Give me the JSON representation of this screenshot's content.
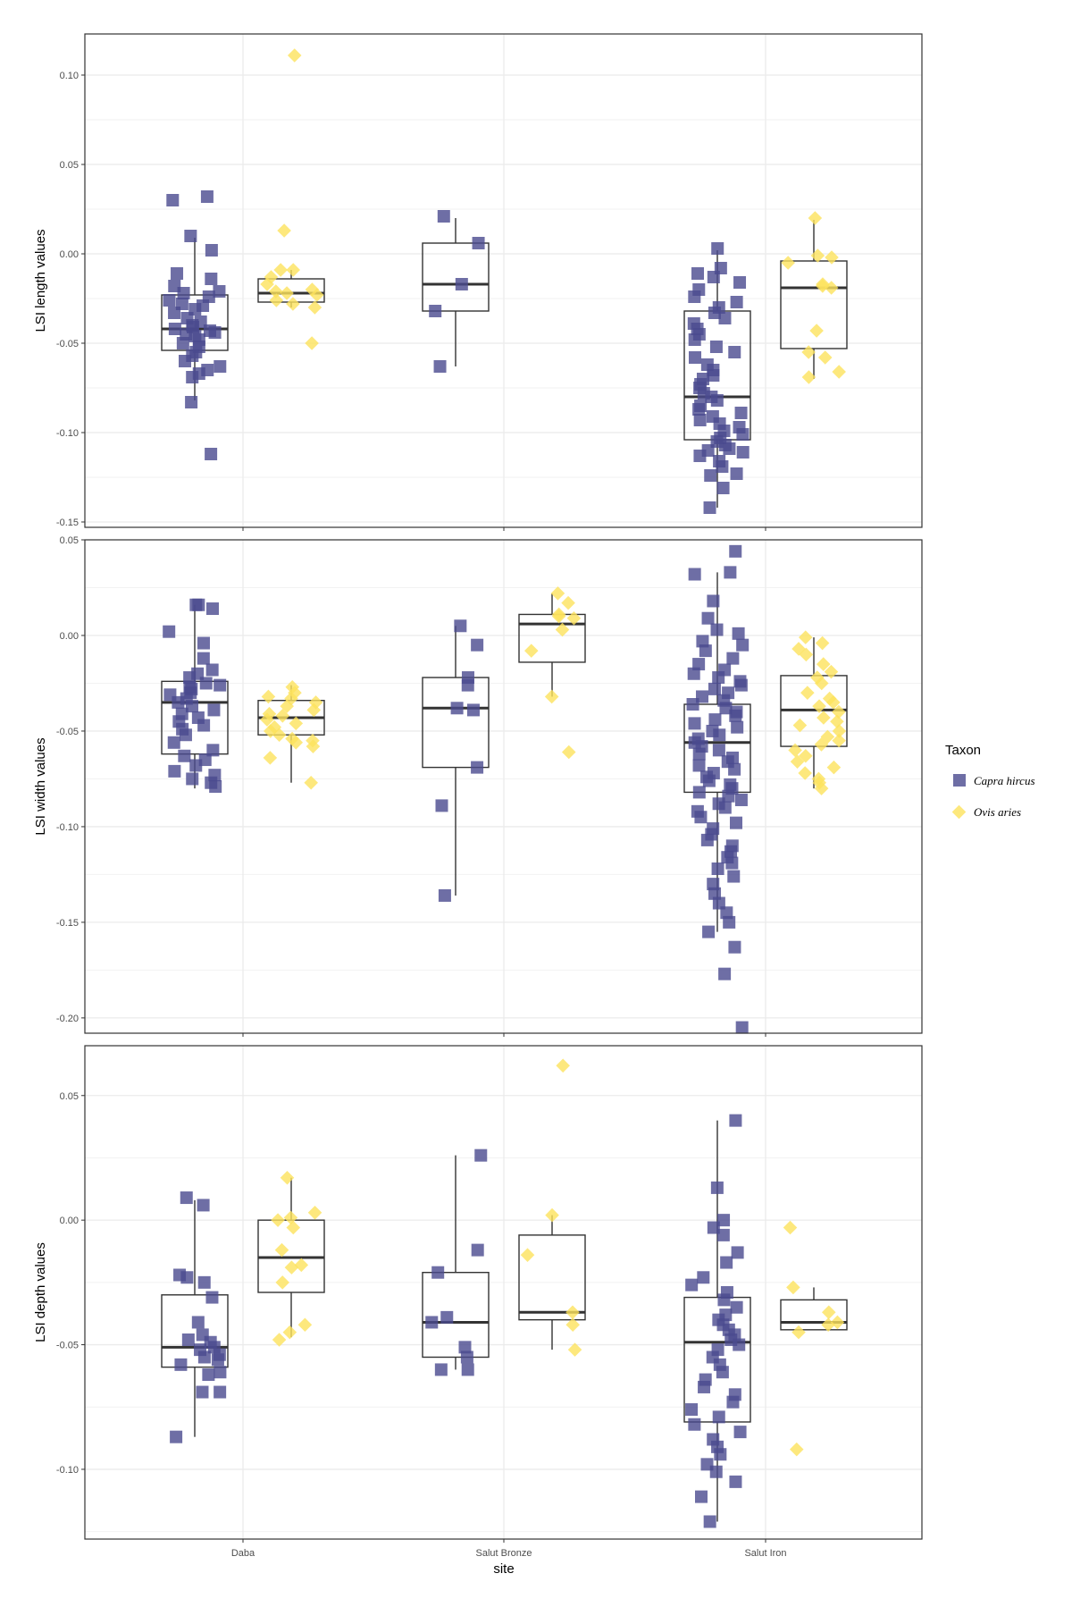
{
  "chart_data": {
    "type": "scatter",
    "x_title": "site",
    "categories": [
      "Daba",
      "Salut Bronze",
      "Salut Iron"
    ],
    "legend": {
      "title": "Taxon",
      "position": "right",
      "entries": [
        {
          "name": "Capra hircus",
          "color": "#4a4a8f",
          "shape": "square"
        },
        {
          "name": "Ovis aries",
          "color": "#fde25c",
          "shape": "diamond"
        }
      ]
    },
    "panels": [
      {
        "ylabel": "LSI length values",
        "ylim": [
          -0.153,
          0.123
        ],
        "yticks": [
          -0.15,
          -0.1,
          -0.05,
          0.0,
          0.05,
          0.1
        ],
        "tick_labels": [
          "-0.15",
          "-0.10",
          "-0.05",
          "0.00",
          "0.05",
          "0.10"
        ],
        "boxes": [
          {
            "site": "Daba",
            "taxon": "Capra hircus",
            "min": -0.082,
            "q1": -0.054,
            "median": -0.042,
            "q3": -0.023,
            "max": 0.009
          },
          {
            "site": "Daba",
            "taxon": "Ovis aries",
            "min": -0.03,
            "q1": -0.027,
            "median": -0.022,
            "q3": -0.014,
            "max": -0.009
          },
          {
            "site": "Salut Bronze",
            "taxon": "Capra hircus",
            "min": -0.063,
            "q1": -0.032,
            "median": -0.017,
            "q3": 0.006,
            "max": 0.02
          },
          {
            "site": "Salut Iron",
            "taxon": "Capra hircus",
            "min": -0.142,
            "q1": -0.104,
            "median": -0.08,
            "q3": -0.032,
            "max": 0.002
          },
          {
            "site": "Salut Iron",
            "taxon": "Ovis aries",
            "min": -0.07,
            "q1": -0.053,
            "median": -0.019,
            "q3": -0.004,
            "max": 0.019
          }
        ],
        "points": {
          "Daba": {
            "Capra hircus": [
              0.032,
              0.03,
              0.01,
              0.002,
              -0.011,
              -0.014,
              -0.018,
              -0.021,
              -0.022,
              -0.024,
              -0.026,
              -0.028,
              -0.029,
              -0.031,
              -0.033,
              -0.036,
              -0.038,
              -0.04,
              -0.041,
              -0.042,
              -0.043,
              -0.044,
              -0.045,
              -0.046,
              -0.048,
              -0.05,
              -0.052,
              -0.055,
              -0.057,
              -0.06,
              -0.063,
              -0.065,
              -0.067,
              -0.069,
              -0.083,
              -0.112
            ],
            "Ovis aries": [
              0.111,
              0.013,
              -0.009,
              -0.009,
              -0.013,
              -0.017,
              -0.02,
              -0.021,
              -0.022,
              -0.023,
              -0.026,
              -0.028,
              -0.03,
              -0.05
            ]
          },
          "Salut Bronze": {
            "Capra hircus": [
              0.021,
              0.006,
              -0.017,
              -0.032,
              -0.063
            ]
          },
          "Salut Iron": {
            "Capra hircus": [
              0.003,
              -0.008,
              -0.011,
              -0.013,
              -0.016,
              -0.02,
              -0.024,
              -0.027,
              -0.03,
              -0.033,
              -0.036,
              -0.039,
              -0.042,
              -0.045,
              -0.048,
              -0.052,
              -0.055,
              -0.058,
              -0.062,
              -0.065,
              -0.068,
              -0.07,
              -0.073,
              -0.075,
              -0.078,
              -0.08,
              -0.082,
              -0.085,
              -0.087,
              -0.089,
              -0.091,
              -0.093,
              -0.095,
              -0.097,
              -0.099,
              -0.101,
              -0.103,
              -0.105,
              -0.107,
              -0.109,
              -0.11,
              -0.111,
              -0.113,
              -0.116,
              -0.119,
              -0.123,
              -0.124,
              -0.131,
              -0.142
            ],
            "Ovis aries": [
              0.02,
              -0.001,
              -0.002,
              -0.005,
              -0.017,
              -0.018,
              -0.019,
              -0.043,
              -0.055,
              -0.058,
              -0.066,
              -0.069
            ]
          }
        }
      },
      {
        "ylabel": "LSI width values",
        "ylim": [
          -0.208,
          0.05
        ],
        "yticks": [
          -0.2,
          -0.15,
          -0.1,
          -0.05,
          0.0,
          0.05
        ],
        "tick_labels": [
          "-0.20",
          "-0.15",
          "-0.10",
          "-0.05",
          "0.00",
          "0.05"
        ],
        "boxes": [
          {
            "site": "Daba",
            "taxon": "Capra hircus",
            "min": -0.08,
            "q1": -0.062,
            "median": -0.035,
            "q3": -0.024,
            "max": 0.016
          },
          {
            "site": "Daba",
            "taxon": "Ovis aries",
            "min": -0.077,
            "q1": -0.052,
            "median": -0.043,
            "q3": -0.034,
            "max": -0.026
          },
          {
            "site": "Salut Bronze",
            "taxon": "Capra hircus",
            "min": -0.136,
            "q1": -0.069,
            "median": -0.038,
            "q3": -0.022,
            "max": 0.005
          },
          {
            "site": "Salut Bronze",
            "taxon": "Ovis aries",
            "min": -0.032,
            "q1": -0.014,
            "median": 0.006,
            "q3": 0.011,
            "max": 0.022
          },
          {
            "site": "Salut Iron",
            "taxon": "Capra hircus",
            "min": -0.155,
            "q1": -0.082,
            "median": -0.056,
            "q3": -0.036,
            "max": 0.033
          },
          {
            "site": "Salut Iron",
            "taxon": "Ovis aries",
            "min": -0.08,
            "q1": -0.058,
            "median": -0.039,
            "q3": -0.021,
            "max": -0.001
          }
        ],
        "points": {
          "Daba": {
            "Capra hircus": [
              0.016,
              0.016,
              0.014,
              0.002,
              -0.004,
              -0.012,
              -0.018,
              -0.02,
              -0.022,
              -0.025,
              -0.026,
              -0.027,
              -0.028,
              -0.03,
              -0.031,
              -0.033,
              -0.035,
              -0.037,
              -0.039,
              -0.041,
              -0.043,
              -0.045,
              -0.047,
              -0.049,
              -0.052,
              -0.056,
              -0.06,
              -0.063,
              -0.065,
              -0.068,
              -0.071,
              -0.073,
              -0.075,
              -0.077,
              -0.079
            ],
            "Ovis aries": [
              -0.027,
              -0.03,
              -0.032,
              -0.033,
              -0.035,
              -0.037,
              -0.039,
              -0.041,
              -0.042,
              -0.044,
              -0.046,
              -0.048,
              -0.05,
              -0.052,
              -0.054,
              -0.055,
              -0.056,
              -0.058,
              -0.064,
              -0.077
            ]
          },
          "Salut Bronze": {
            "Capra hircus": [
              0.005,
              -0.005,
              -0.022,
              -0.026,
              -0.038,
              -0.039,
              -0.069,
              -0.089,
              -0.136
            ],
            "Ovis aries": [
              0.022,
              0.017,
              0.011,
              0.01,
              0.009,
              0.003,
              -0.008,
              -0.032,
              -0.061
            ]
          },
          "Salut Iron": {
            "Capra hircus": [
              0.044,
              0.033,
              0.032,
              0.018,
              0.009,
              0.003,
              0.001,
              -0.003,
              -0.005,
              -0.008,
              -0.012,
              -0.015,
              -0.018,
              -0.02,
              -0.022,
              -0.024,
              -0.026,
              -0.028,
              -0.03,
              -0.032,
              -0.034,
              -0.036,
              -0.038,
              -0.04,
              -0.042,
              -0.044,
              -0.046,
              -0.048,
              -0.05,
              -0.052,
              -0.054,
              -0.056,
              -0.058,
              -0.06,
              -0.062,
              -0.064,
              -0.066,
              -0.068,
              -0.07,
              -0.072,
              -0.074,
              -0.076,
              -0.078,
              -0.08,
              -0.082,
              -0.084,
              -0.086,
              -0.088,
              -0.09,
              -0.092,
              -0.095,
              -0.098,
              -0.101,
              -0.104,
              -0.107,
              -0.11,
              -0.113,
              -0.116,
              -0.119,
              -0.122,
              -0.126,
              -0.13,
              -0.135,
              -0.14,
              -0.145,
              -0.15,
              -0.155,
              -0.163,
              -0.177,
              -0.205
            ],
            "Ovis aries": [
              -0.001,
              -0.004,
              -0.007,
              -0.01,
              -0.015,
              -0.019,
              -0.022,
              -0.025,
              -0.03,
              -0.033,
              -0.035,
              -0.037,
              -0.04,
              -0.043,
              -0.045,
              -0.047,
              -0.05,
              -0.053,
              -0.055,
              -0.057,
              -0.06,
              -0.063,
              -0.066,
              -0.069,
              -0.072,
              -0.075,
              -0.077,
              -0.08
            ]
          }
        }
      },
      {
        "ylabel": "LSI depth values",
        "ylim": [
          -0.128,
          0.07
        ],
        "yticks": [
          -0.1,
          -0.05,
          0.0,
          0.05
        ],
        "tick_labels": [
          "-0.10",
          "-0.05",
          "0.00",
          "0.05"
        ],
        "boxes": [
          {
            "site": "Daba",
            "taxon": "Capra hircus",
            "min": -0.087,
            "q1": -0.059,
            "median": -0.051,
            "q3": -0.03,
            "max": 0.008
          },
          {
            "site": "Daba",
            "taxon": "Ovis aries",
            "min": -0.047,
            "q1": -0.029,
            "median": -0.015,
            "q3": 0.0,
            "max": 0.017
          },
          {
            "site": "Salut Bronze",
            "taxon": "Capra hircus",
            "min": -0.06,
            "q1": -0.055,
            "median": -0.041,
            "q3": -0.021,
            "max": 0.026
          },
          {
            "site": "Salut Bronze",
            "taxon": "Ovis aries",
            "min": -0.052,
            "q1": -0.04,
            "median": -0.037,
            "q3": -0.006,
            "max": 0.002
          },
          {
            "site": "Salut Iron",
            "taxon": "Capra hircus",
            "min": -0.121,
            "q1": -0.081,
            "median": -0.049,
            "q3": -0.031,
            "max": 0.04
          },
          {
            "site": "Salut Iron",
            "taxon": "Ovis aries",
            "min": -0.044,
            "q1": -0.044,
            "median": -0.041,
            "q3": -0.032,
            "max": -0.027
          }
        ],
        "points": {
          "Daba": {
            "Capra hircus": [
              0.009,
              0.006,
              -0.022,
              -0.023,
              -0.025,
              -0.031,
              -0.041,
              -0.046,
              -0.048,
              -0.049,
              -0.051,
              -0.052,
              -0.054,
              -0.055,
              -0.056,
              -0.058,
              -0.061,
              -0.062,
              -0.069,
              -0.069,
              -0.087
            ],
            "Ovis aries": [
              0.017,
              0.003,
              0.001,
              0.0,
              -0.003,
              -0.012,
              -0.018,
              -0.019,
              -0.025,
              -0.042,
              -0.045,
              -0.048
            ]
          },
          "Salut Bronze": {
            "Capra hircus": [
              0.026,
              -0.012,
              -0.021,
              -0.039,
              -0.041,
              -0.051,
              -0.055,
              -0.06,
              -0.06
            ],
            "Ovis aries": [
              0.062,
              0.002,
              -0.014,
              -0.037,
              -0.042,
              -0.052
            ]
          },
          "Salut Iron": {
            "Capra hircus": [
              0.04,
              0.013,
              0.0,
              -0.003,
              -0.006,
              -0.013,
              -0.017,
              -0.023,
              -0.026,
              -0.029,
              -0.032,
              -0.035,
              -0.038,
              -0.04,
              -0.042,
              -0.044,
              -0.046,
              -0.048,
              -0.05,
              -0.052,
              -0.055,
              -0.058,
              -0.061,
              -0.064,
              -0.067,
              -0.07,
              -0.073,
              -0.076,
              -0.079,
              -0.082,
              -0.085,
              -0.088,
              -0.091,
              -0.094,
              -0.098,
              -0.101,
              -0.105,
              -0.111,
              -0.121
            ],
            "Ovis aries": [
              -0.003,
              -0.027,
              -0.037,
              -0.041,
              -0.042,
              -0.045,
              -0.092
            ]
          }
        }
      }
    ]
  }
}
